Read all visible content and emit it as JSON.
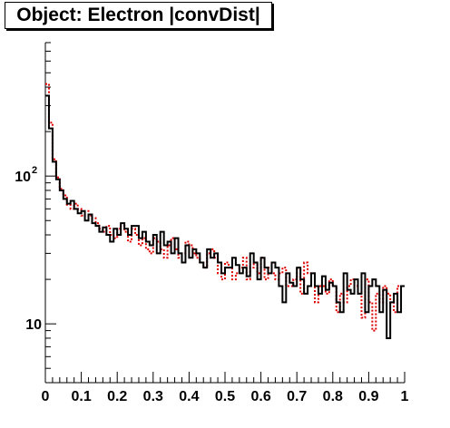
{
  "title": "Object: Electron |convDist|",
  "chart_data": {
    "type": "line",
    "title": "Object: Electron |convDist|",
    "xlabel": "",
    "ylabel": "",
    "xlim": [
      0,
      1
    ],
    "ylim": [
      4,
      800
    ],
    "yscale": "log",
    "grid": false,
    "x_ticks": [
      0,
      0.1,
      0.2,
      0.3,
      0.4,
      0.5,
      0.6,
      0.7,
      0.8,
      0.9,
      1
    ],
    "x_tick_labels": [
      "0",
      "0.1",
      "0.2",
      "0.3",
      "0.4",
      "0.5",
      "0.6",
      "0.7",
      "0.8",
      "0.9",
      "1"
    ],
    "y_tick_labels": [
      {
        "value": 100,
        "base": "10",
        "exp": "2"
      },
      {
        "value": 10,
        "base": "10",
        "exp": ""
      }
    ],
    "bin_width": 0.01,
    "series": [
      {
        "style": "solid",
        "color": "#000000",
        "values": [
          350,
          210,
          125,
          95,
          80,
          70,
          65,
          68,
          60,
          56,
          58,
          50,
          55,
          48,
          46,
          42,
          45,
          40,
          36,
          44,
          40,
          48,
          44,
          40,
          46,
          46,
          38,
          42,
          36,
          34,
          40,
          30,
          42,
          34,
          36,
          30,
          38,
          30,
          26,
          34,
          28,
          32,
          30,
          26,
          24,
          32,
          28,
          30,
          26,
          22,
          24,
          24,
          28,
          25,
          22,
          24,
          21,
          30,
          26,
          20,
          28,
          24,
          22,
          26,
          24,
          18,
          14,
          22,
          19,
          18,
          24,
          20,
          16,
          18,
          22,
          18,
          16,
          21,
          17,
          19,
          18,
          14,
          12,
          22,
          17,
          16,
          20,
          16,
          22,
          12,
          18,
          20,
          18,
          12,
          17,
          8,
          14,
          16,
          12,
          18
        ]
      },
      {
        "style": "dotted",
        "color": "#dd0000",
        "values": [
          420,
          230,
          130,
          98,
          82,
          74,
          64,
          60,
          65,
          60,
          54,
          58,
          54,
          52,
          48,
          44,
          42,
          46,
          40,
          38,
          44,
          46,
          42,
          36,
          44,
          40,
          34,
          38,
          32,
          30,
          38,
          36,
          32,
          28,
          34,
          38,
          32,
          28,
          30,
          36,
          34,
          30,
          28,
          26,
          24,
          30,
          32,
          28,
          22,
          20,
          26,
          24,
          20,
          22,
          24,
          28,
          20,
          24,
          26,
          22,
          28,
          20,
          24,
          22,
          20,
          22,
          24,
          18,
          18,
          20,
          24,
          16,
          26,
          22,
          22,
          14,
          18,
          18,
          16,
          20,
          18,
          12,
          16,
          14,
          18,
          20,
          18,
          16,
          11,
          20,
          14,
          9,
          16,
          14,
          18,
          16,
          14,
          12,
          18,
          18
        ]
      }
    ]
  }
}
